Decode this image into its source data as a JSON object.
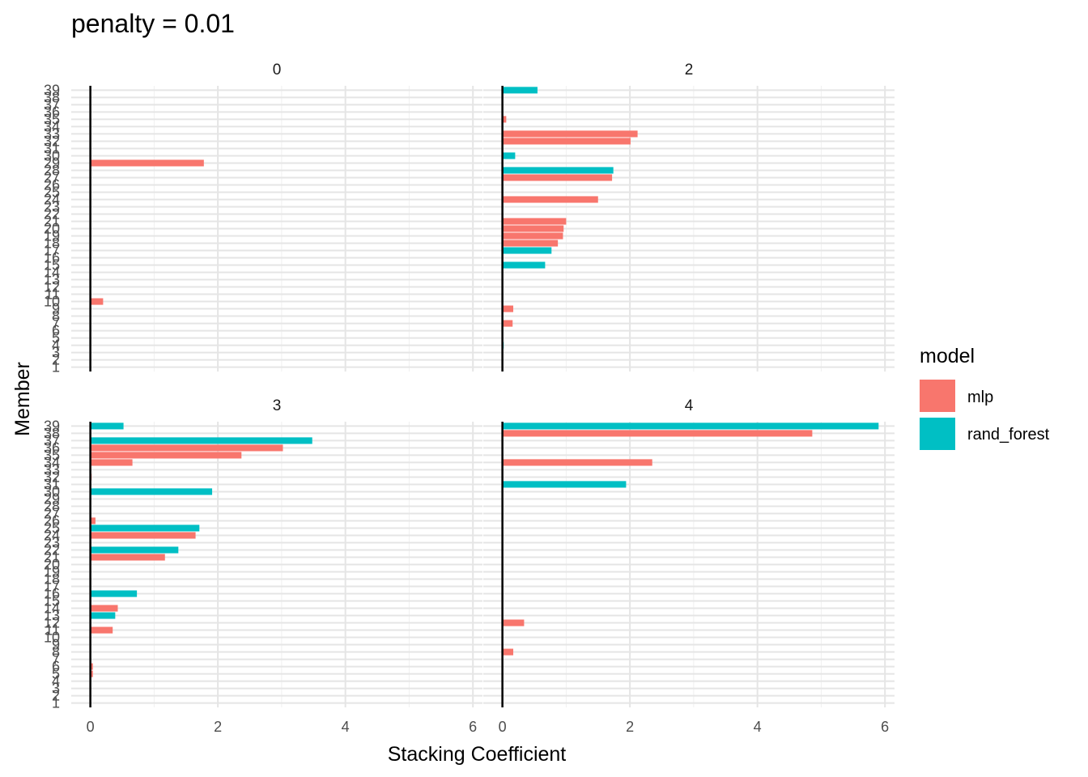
{
  "chart_data": {
    "type": "bar",
    "title": "penalty = 0.01",
    "xlabel": "Stacking Coefficient",
    "ylabel": "Member",
    "xlim": [
      -0.3,
      6.15
    ],
    "x_ticks": [
      0,
      2,
      4,
      6
    ],
    "y_categories": [
      1,
      2,
      3,
      4,
      5,
      6,
      7,
      8,
      9,
      10,
      11,
      12,
      13,
      14,
      15,
      16,
      17,
      18,
      19,
      20,
      21,
      22,
      23,
      24,
      25,
      26,
      27,
      28,
      29,
      30,
      31,
      32,
      33,
      34,
      35,
      36,
      37,
      38,
      39
    ],
    "legend": {
      "title": "model",
      "placement": "right",
      "items": [
        {
          "name": "mlp",
          "color": "#F8766D"
        },
        {
          "name": "rand_forest",
          "color": "#00BFC4"
        }
      ]
    },
    "panels": [
      {
        "label": "0",
        "bars": [
          {
            "member": 29,
            "model": "mlp",
            "value": 1.78
          },
          {
            "member": 10,
            "model": "mlp",
            "value": 0.2
          }
        ]
      },
      {
        "label": "2",
        "bars": [
          {
            "member": 39,
            "model": "rand_forest",
            "value": 0.55
          },
          {
            "member": 35,
            "model": "mlp",
            "value": 0.06
          },
          {
            "member": 33,
            "model": "mlp",
            "value": 2.12
          },
          {
            "member": 32,
            "model": "mlp",
            "value": 2.01
          },
          {
            "member": 30,
            "model": "rand_forest",
            "value": 0.2
          },
          {
            "member": 28,
            "model": "rand_forest",
            "value": 1.74
          },
          {
            "member": 27,
            "model": "mlp",
            "value": 1.72
          },
          {
            "member": 24,
            "model": "mlp",
            "value": 1.5
          },
          {
            "member": 21,
            "model": "mlp",
            "value": 1.0
          },
          {
            "member": 20,
            "model": "mlp",
            "value": 0.96
          },
          {
            "member": 19,
            "model": "mlp",
            "value": 0.95
          },
          {
            "member": 18,
            "model": "mlp",
            "value": 0.87
          },
          {
            "member": 17,
            "model": "rand_forest",
            "value": 0.77
          },
          {
            "member": 15,
            "model": "rand_forest",
            "value": 0.67
          },
          {
            "member": 9,
            "model": "mlp",
            "value": 0.17
          },
          {
            "member": 7,
            "model": "mlp",
            "value": 0.16
          },
          {
            "member": 4,
            "model": "rand_forest",
            "value": 0.02
          }
        ]
      },
      {
        "label": "3",
        "bars": [
          {
            "member": 39,
            "model": "rand_forest",
            "value": 0.52
          },
          {
            "member": 37,
            "model": "rand_forest",
            "value": 3.48
          },
          {
            "member": 36,
            "model": "mlp",
            "value": 3.02
          },
          {
            "member": 35,
            "model": "mlp",
            "value": 2.37
          },
          {
            "member": 34,
            "model": "mlp",
            "value": 0.66
          },
          {
            "member": 32,
            "model": "mlp",
            "value": 0.02
          },
          {
            "member": 30,
            "model": "rand_forest",
            "value": 1.91
          },
          {
            "member": 26,
            "model": "mlp",
            "value": 0.08
          },
          {
            "member": 25,
            "model": "rand_forest",
            "value": 1.71
          },
          {
            "member": 24,
            "model": "mlp",
            "value": 1.65
          },
          {
            "member": 22,
            "model": "rand_forest",
            "value": 1.38
          },
          {
            "member": 21,
            "model": "mlp",
            "value": 1.17
          },
          {
            "member": 16,
            "model": "rand_forest",
            "value": 0.73
          },
          {
            "member": 14,
            "model": "mlp",
            "value": 0.43
          },
          {
            "member": 13,
            "model": "rand_forest",
            "value": 0.39
          },
          {
            "member": 11,
            "model": "mlp",
            "value": 0.35
          },
          {
            "member": 6,
            "model": "mlp",
            "value": 0.04
          },
          {
            "member": 5,
            "model": "mlp",
            "value": 0.04
          }
        ]
      },
      {
        "label": "4",
        "bars": [
          {
            "member": 39,
            "model": "rand_forest",
            "value": 5.9
          },
          {
            "member": 38,
            "model": "mlp",
            "value": 4.86
          },
          {
            "member": 34,
            "model": "mlp",
            "value": 2.35
          },
          {
            "member": 31,
            "model": "rand_forest",
            "value": 1.94
          },
          {
            "member": 12,
            "model": "mlp",
            "value": 0.34
          },
          {
            "member": 8,
            "model": "mlp",
            "value": 0.17
          }
        ]
      }
    ]
  }
}
